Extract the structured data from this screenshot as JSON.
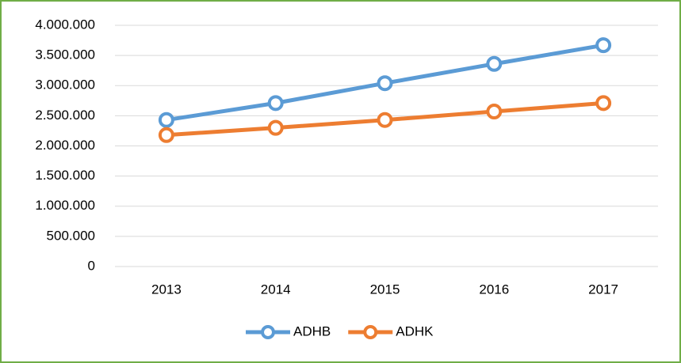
{
  "chart_data": {
    "type": "line",
    "categories": [
      "2013",
      "2014",
      "2015",
      "2016",
      "2017"
    ],
    "series": [
      {
        "name": "ADHB",
        "color": "#5b9bd5",
        "values": [
          2430000,
          2710000,
          3040000,
          3360000,
          3670000
        ]
      },
      {
        "name": "ADHK",
        "color": "#ed7d31",
        "values": [
          2180000,
          2300000,
          2430000,
          2570000,
          2710000
        ]
      }
    ],
    "ylim": [
      0,
      4000000
    ],
    "yticks": [
      0,
      {
        "value": 500000,
        "label": "500.000"
      },
      {
        "value": 1000000,
        "label": "1.000.000"
      },
      {
        "value": 1500000,
        "label": "1.500.000"
      },
      {
        "value": 2000000,
        "label": "2.000.000"
      },
      {
        "value": 2500000,
        "label": "2.500.000"
      },
      {
        "value": 3000000,
        "label": "3.000.000"
      },
      {
        "value": 3500000,
        "label": "3.500.000"
      },
      {
        "value": 4000000,
        "label": "4.000.000"
      }
    ],
    "grid": true,
    "legend": "bottom"
  }
}
